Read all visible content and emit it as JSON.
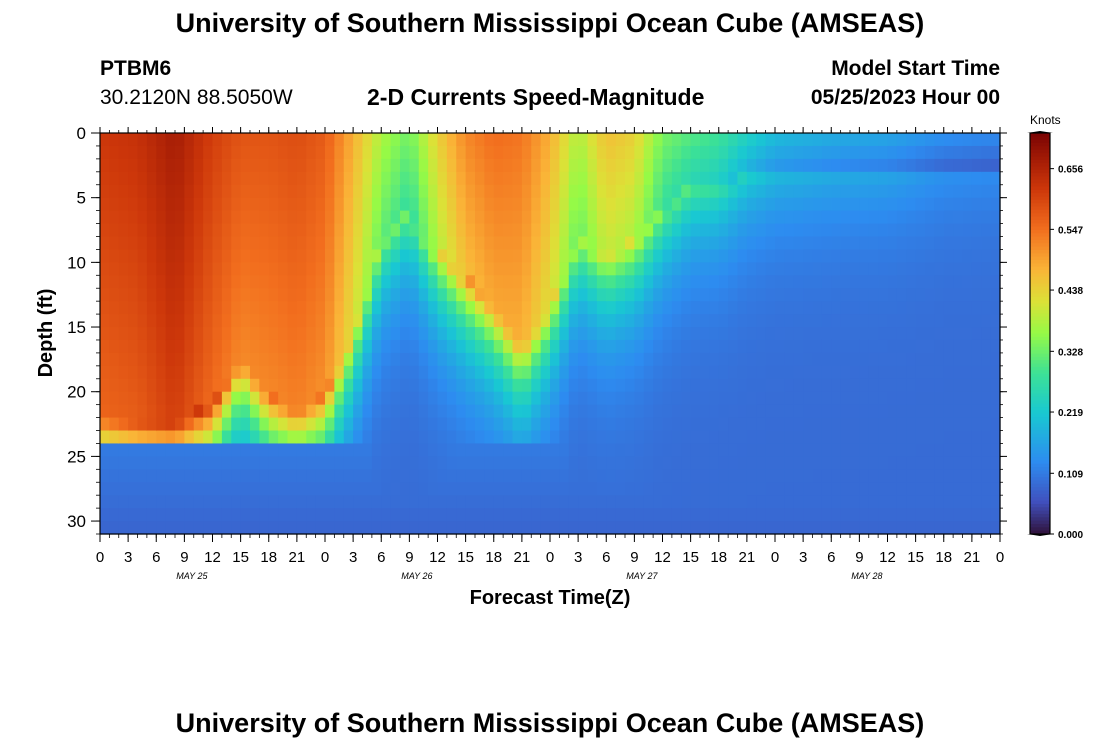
{
  "header": {
    "title": "University of Southern Mississippi Ocean Cube (AMSEAS)",
    "station_id": "PTBM6",
    "coordinates": "30.2120N  88.5050W",
    "plot_title": "2-D Currents Speed-Magnitude",
    "model_start_label": "Model Start Time",
    "model_start_value": "05/25/2023 Hour 00"
  },
  "footer": {
    "title": "University of Southern Mississippi Ocean Cube (AMSEAS)"
  },
  "chart_data": {
    "type": "heatmap",
    "title": "2-D Currents Speed-Magnitude",
    "xlabel": "Forecast Time(Z)",
    "ylabel": "Depth (ft)",
    "x_range_hours": [
      0,
      96
    ],
    "x_ticks": [
      "0",
      "3",
      "6",
      "9",
      "12",
      "15",
      "18",
      "21",
      "0",
      "3",
      "6",
      "9",
      "12",
      "15",
      "18",
      "21",
      "0",
      "3",
      "6",
      "9",
      "12",
      "15",
      "18",
      "21",
      "0",
      "3",
      "6",
      "9",
      "12",
      "15",
      "18",
      "21",
      "0"
    ],
    "x_day_labels": [
      "MAY 25",
      "MAY 26",
      "MAY 27",
      "MAY 28"
    ],
    "ylim": [
      0,
      31
    ],
    "y_ticks": [
      "0",
      "5",
      "10",
      "15",
      "20",
      "25",
      "30"
    ],
    "colorbar": {
      "label": "Knots",
      "range": [
        0,
        0.72
      ],
      "ticks": [
        "0.656",
        "0.547",
        "0.438",
        "0.328",
        "0.219",
        "0.109",
        "0.000"
      ]
    },
    "features": [
      {
        "t": 0,
        "d_top": 0,
        "d_bottom": 21.5,
        "speed": 0.62
      },
      {
        "t": 4,
        "d_top": 0,
        "d_bottom": 22,
        "speed": 0.63
      },
      {
        "t": 8,
        "d_top": 0,
        "d_bottom": 22,
        "speed": 0.67
      },
      {
        "t": 12,
        "d_top": 0,
        "d_bottom": 21,
        "speed": 0.61
      },
      {
        "t": 15,
        "d_top": 0,
        "d_bottom": 17,
        "speed": 0.58
      },
      {
        "t": 18,
        "d_top": 0,
        "d_bottom": 20,
        "speed": 0.58
      },
      {
        "t": 21,
        "d_top": 0,
        "d_bottom": 21,
        "speed": 0.59
      },
      {
        "t": 24,
        "d_top": 0,
        "d_bottom": 20,
        "speed": 0.57
      },
      {
        "t": 27,
        "d_top": 0,
        "d_bottom": 15,
        "speed": 0.48
      },
      {
        "t": 30,
        "d_top": 0,
        "d_bottom": 8,
        "speed": 0.38
      },
      {
        "t": 33,
        "d_top": 0,
        "d_bottom": 6,
        "speed": 0.33
      },
      {
        "t": 36,
        "d_top": 0,
        "d_bottom": 9,
        "speed": 0.44
      },
      {
        "t": 39,
        "d_top": 0,
        "d_bottom": 11,
        "speed": 0.52
      },
      {
        "t": 42,
        "d_top": 0,
        "d_bottom": 13,
        "speed": 0.55
      },
      {
        "t": 45,
        "d_top": 0,
        "d_bottom": 16,
        "speed": 0.54
      },
      {
        "t": 48,
        "d_top": 0,
        "d_bottom": 13,
        "speed": 0.48
      },
      {
        "t": 51,
        "d_top": 0,
        "d_bottom": 8,
        "speed": 0.38
      },
      {
        "t": 54,
        "d_top": 0,
        "d_bottom": 9,
        "speed": 0.46
      },
      {
        "t": 57,
        "d_top": 0,
        "d_bottom": 8,
        "speed": 0.44
      },
      {
        "t": 60,
        "d_top": 0,
        "d_bottom": 6,
        "speed": 0.34
      },
      {
        "t": 63,
        "d_top": 0,
        "d_bottom": 4,
        "speed": 0.31
      },
      {
        "t": 66,
        "d_top": 0,
        "d_bottom": 4,
        "speed": 0.29
      },
      {
        "t": 69,
        "d_top": 0,
        "d_bottom": 3,
        "speed": 0.24
      },
      {
        "t": 72,
        "d_top": 0,
        "d_bottom": 3,
        "speed": 0.2
      },
      {
        "t": 78,
        "d_top": 0,
        "d_bottom": 3,
        "speed": 0.18
      },
      {
        "t": 84,
        "d_top": 0,
        "d_bottom": 3,
        "speed": 0.17
      },
      {
        "t": 90,
        "d_top": 0,
        "d_bottom": 3,
        "speed": 0.14
      },
      {
        "t": 96,
        "d_top": 0,
        "d_bottom": 3,
        "speed": 0.13
      }
    ]
  }
}
